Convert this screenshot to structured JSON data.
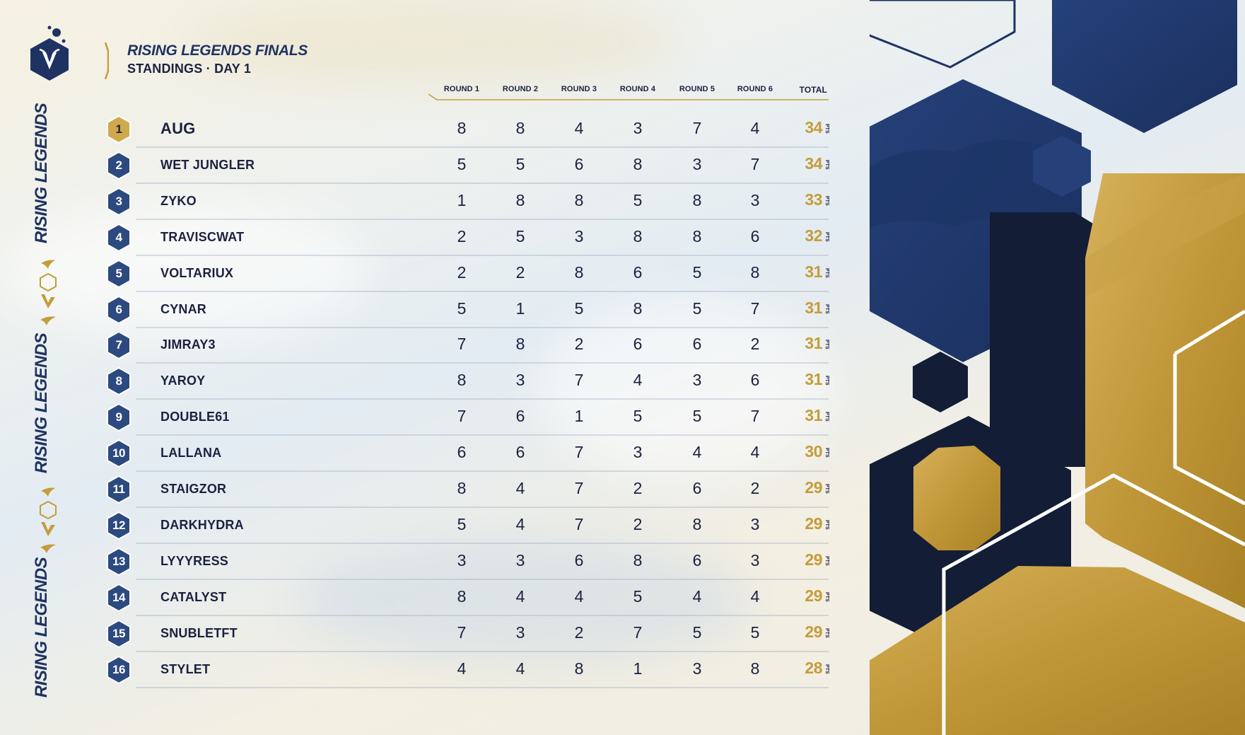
{
  "header": {
    "title": "RISING LEGENDS FINALS",
    "subtitle": "STANDINGS · DAY 1"
  },
  "sidebar": {
    "brand_text": "RISING LEGENDS",
    "logo_icon": "legends-shield-logo-icon",
    "ornament_icons": [
      "hexagon-outline-icon",
      "winged-v-icon"
    ]
  },
  "columns": [
    "ROUND 1",
    "ROUND 2",
    "ROUND 3",
    "ROUND 4",
    "ROUND 5",
    "ROUND 6",
    "TOTAL"
  ],
  "points_unit": "PTS",
  "standings": [
    {
      "rank": "1",
      "player": "AUG",
      "rounds": [
        "8",
        "8",
        "4",
        "3",
        "7",
        "4"
      ],
      "total": "34"
    },
    {
      "rank": "2",
      "player": "WET JUNGLER",
      "rounds": [
        "5",
        "5",
        "6",
        "8",
        "3",
        "7"
      ],
      "total": "34"
    },
    {
      "rank": "3",
      "player": "ZYKO",
      "rounds": [
        "1",
        "8",
        "8",
        "5",
        "8",
        "3"
      ],
      "total": "33"
    },
    {
      "rank": "4",
      "player": "TRAVISCWAT",
      "rounds": [
        "2",
        "5",
        "3",
        "8",
        "8",
        "6"
      ],
      "total": "32"
    },
    {
      "rank": "5",
      "player": "VOLTARIUX",
      "rounds": [
        "2",
        "2",
        "8",
        "6",
        "5",
        "8"
      ],
      "total": "31"
    },
    {
      "rank": "6",
      "player": "CYNAR",
      "rounds": [
        "5",
        "1",
        "5",
        "8",
        "5",
        "7"
      ],
      "total": "31"
    },
    {
      "rank": "7",
      "player": "JIMRAY3",
      "rounds": [
        "7",
        "8",
        "2",
        "6",
        "6",
        "2"
      ],
      "total": "31"
    },
    {
      "rank": "8",
      "player": "YAROY",
      "rounds": [
        "8",
        "3",
        "7",
        "4",
        "3",
        "6"
      ],
      "total": "31"
    },
    {
      "rank": "9",
      "player": "DOUBLE61",
      "rounds": [
        "7",
        "6",
        "1",
        "5",
        "5",
        "7"
      ],
      "total": "31"
    },
    {
      "rank": "10",
      "player": "LALLANA",
      "rounds": [
        "6",
        "6",
        "7",
        "3",
        "4",
        "4"
      ],
      "total": "30"
    },
    {
      "rank": "11",
      "player": "STAIGZOR",
      "rounds": [
        "8",
        "4",
        "7",
        "2",
        "6",
        "2"
      ],
      "total": "29"
    },
    {
      "rank": "12",
      "player": "DARKHYDRA",
      "rounds": [
        "5",
        "4",
        "7",
        "2",
        "8",
        "3"
      ],
      "total": "29"
    },
    {
      "rank": "13",
      "player": "LYYYRESS",
      "rounds": [
        "3",
        "3",
        "6",
        "8",
        "6",
        "3"
      ],
      "total": "29"
    },
    {
      "rank": "14",
      "player": "CATALYST",
      "rounds": [
        "8",
        "4",
        "4",
        "5",
        "4",
        "4"
      ],
      "total": "29"
    },
    {
      "rank": "15",
      "player": "SNUBLETFT",
      "rounds": [
        "7",
        "3",
        "2",
        "7",
        "5",
        "5"
      ],
      "total": "29"
    },
    {
      "rank": "16",
      "player": "STYLET",
      "rounds": [
        "4",
        "4",
        "8",
        "1",
        "3",
        "8"
      ],
      "total": "28"
    }
  ],
  "colors": {
    "navy": "#1f3363",
    "dark_navy": "#141d36",
    "gold": "#c49d3a",
    "rank_badge_blue": "#2c4a80",
    "first_place_gold": "#cfa94b"
  }
}
